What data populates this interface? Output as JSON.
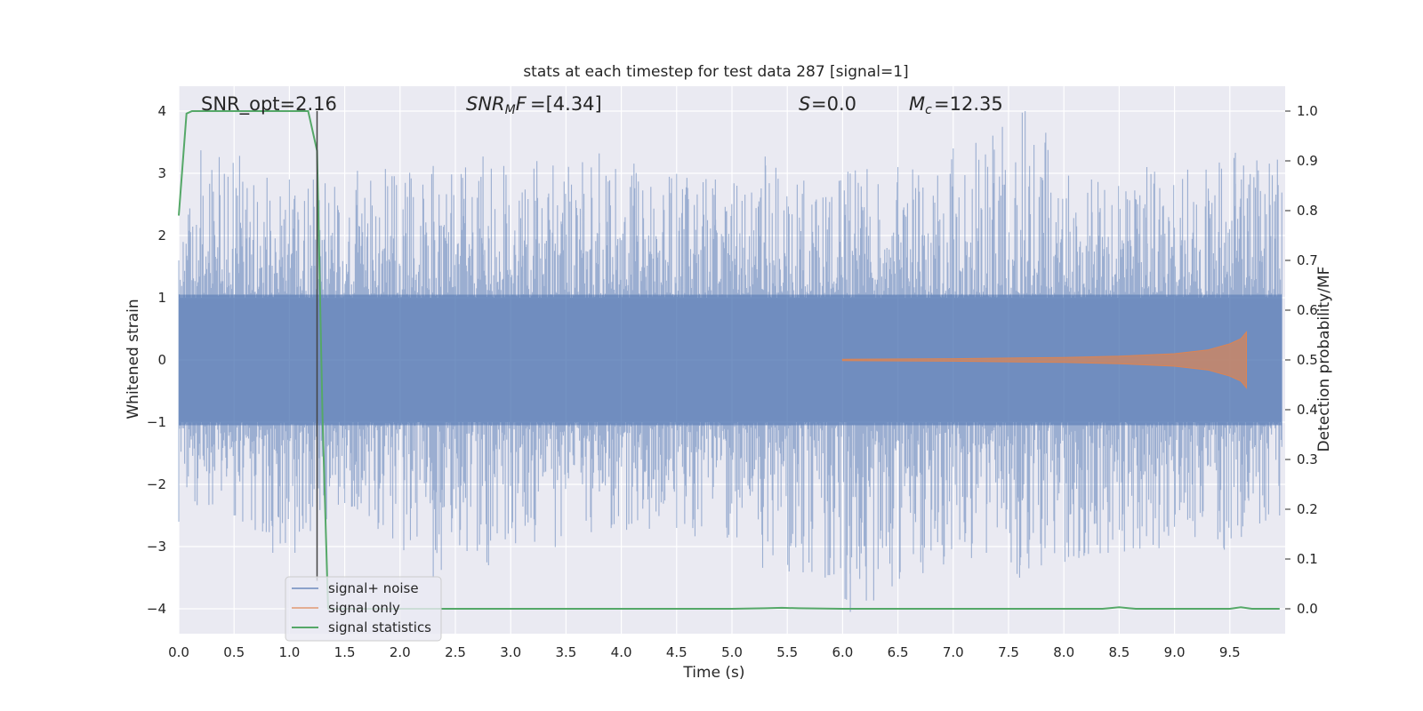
{
  "chart_data": {
    "type": "line",
    "title": "stats at each timestep for test data 287 [signal=1]",
    "xlabel": "Time (s)",
    "ylabel_left": "Whitened strain",
    "ylabel_right": "Detection probability/MF",
    "xlim": [
      0,
      10
    ],
    "ylim_left": [
      -4.4,
      4.4
    ],
    "ylim_right": [
      -0.05,
      1.05
    ],
    "grid": true,
    "x_ticks": [
      "0.0",
      "0.5",
      "1.0",
      "1.5",
      "2.0",
      "2.5",
      "3.0",
      "3.5",
      "4.0",
      "4.5",
      "5.0",
      "5.5",
      "6.0",
      "6.5",
      "7.0",
      "7.5",
      "8.0",
      "8.5",
      "9.0",
      "9.5"
    ],
    "y_ticks_left": [
      "−4",
      "−3",
      "−2",
      "−1",
      "0",
      "1",
      "2",
      "3",
      "4"
    ],
    "y_ticks_right": [
      "0.0",
      "0.1",
      "0.2",
      "0.3",
      "0.4",
      "0.5",
      "0.6",
      "0.7",
      "0.8",
      "0.9",
      "1.0"
    ],
    "annotations": {
      "snr_opt": "SNR_opt=2.16",
      "snr_mf": "=[4.34]",
      "s_value": "=0.0",
      "mc_value": "=12.35"
    },
    "marker_time": 1.25,
    "legend_position": "lower-left",
    "colors": {
      "signal_noise": "#4c72b0",
      "signal_only": "#dd8452",
      "signal_statistics": "#55a868",
      "plot_bg": "#eaeaf2"
    },
    "series": [
      {
        "name": "signal+ noise",
        "axis": "left",
        "description_values": "dense noise, envelope approx",
        "upper_envelope": [
          [
            0.0,
            1.6
          ],
          [
            0.2,
            3.37
          ],
          [
            0.55,
            3.28
          ],
          [
            1.0,
            2.9
          ],
          [
            1.25,
            3.0
          ],
          [
            2.75,
            3.27
          ],
          [
            3.8,
            3.32
          ],
          [
            4.85,
            2.9
          ],
          [
            5.3,
            3.27
          ],
          [
            6.5,
            3.1
          ],
          [
            7.0,
            3.4
          ],
          [
            7.65,
            4.0
          ],
          [
            8.25,
            2.9
          ],
          [
            8.75,
            3.1
          ],
          [
            9.55,
            3.33
          ],
          [
            9.93,
            3.22
          ]
        ],
        "lower_envelope": [
          [
            0.0,
            -2.6
          ],
          [
            0.5,
            -2.5
          ],
          [
            0.85,
            -3.1
          ],
          [
            1.05,
            -3.1
          ],
          [
            1.5,
            -2.3
          ],
          [
            2.3,
            -3.5
          ],
          [
            2.8,
            -3.3
          ],
          [
            4.5,
            -2.7
          ],
          [
            6.07,
            -4.05
          ],
          [
            7.3,
            -3.1
          ],
          [
            7.6,
            -3.5
          ],
          [
            8.4,
            -3.1
          ],
          [
            9.45,
            -3.05
          ],
          [
            9.95,
            -2.5
          ]
        ]
      },
      {
        "name": "signal only",
        "axis": "left",
        "x": [
          6.0,
          7.0,
          8.0,
          8.5,
          9.0,
          9.3,
          9.5,
          9.6,
          9.65
        ],
        "amplitude": [
          0.01,
          0.02,
          0.04,
          0.06,
          0.1,
          0.16,
          0.26,
          0.34,
          0.45
        ]
      },
      {
        "name": "signal statistics",
        "axis": "right",
        "x": [
          0.0,
          0.07,
          0.12,
          0.2,
          0.6,
          1.0,
          1.17,
          1.25,
          1.3,
          1.35,
          1.4,
          1.5,
          2.0,
          3.0,
          4.0,
          5.0,
          5.3,
          5.45,
          5.6,
          6.0,
          7.0,
          8.0,
          8.35,
          8.5,
          8.65,
          9.0,
          9.5,
          9.6,
          9.7,
          9.8,
          9.95
        ],
        "y": [
          0.79,
          0.995,
          1.0,
          1.0,
          1.0,
          1.0,
          1.0,
          0.92,
          0.38,
          0.0,
          0.0,
          0.0,
          0.0,
          0.0,
          0.0,
          0.0,
          0.001,
          0.002,
          0.001,
          0.0,
          0.0,
          0.0,
          0.0,
          0.003,
          0.0,
          0.0,
          0.0,
          0.003,
          0.0,
          0.0,
          0.0
        ]
      }
    ]
  }
}
